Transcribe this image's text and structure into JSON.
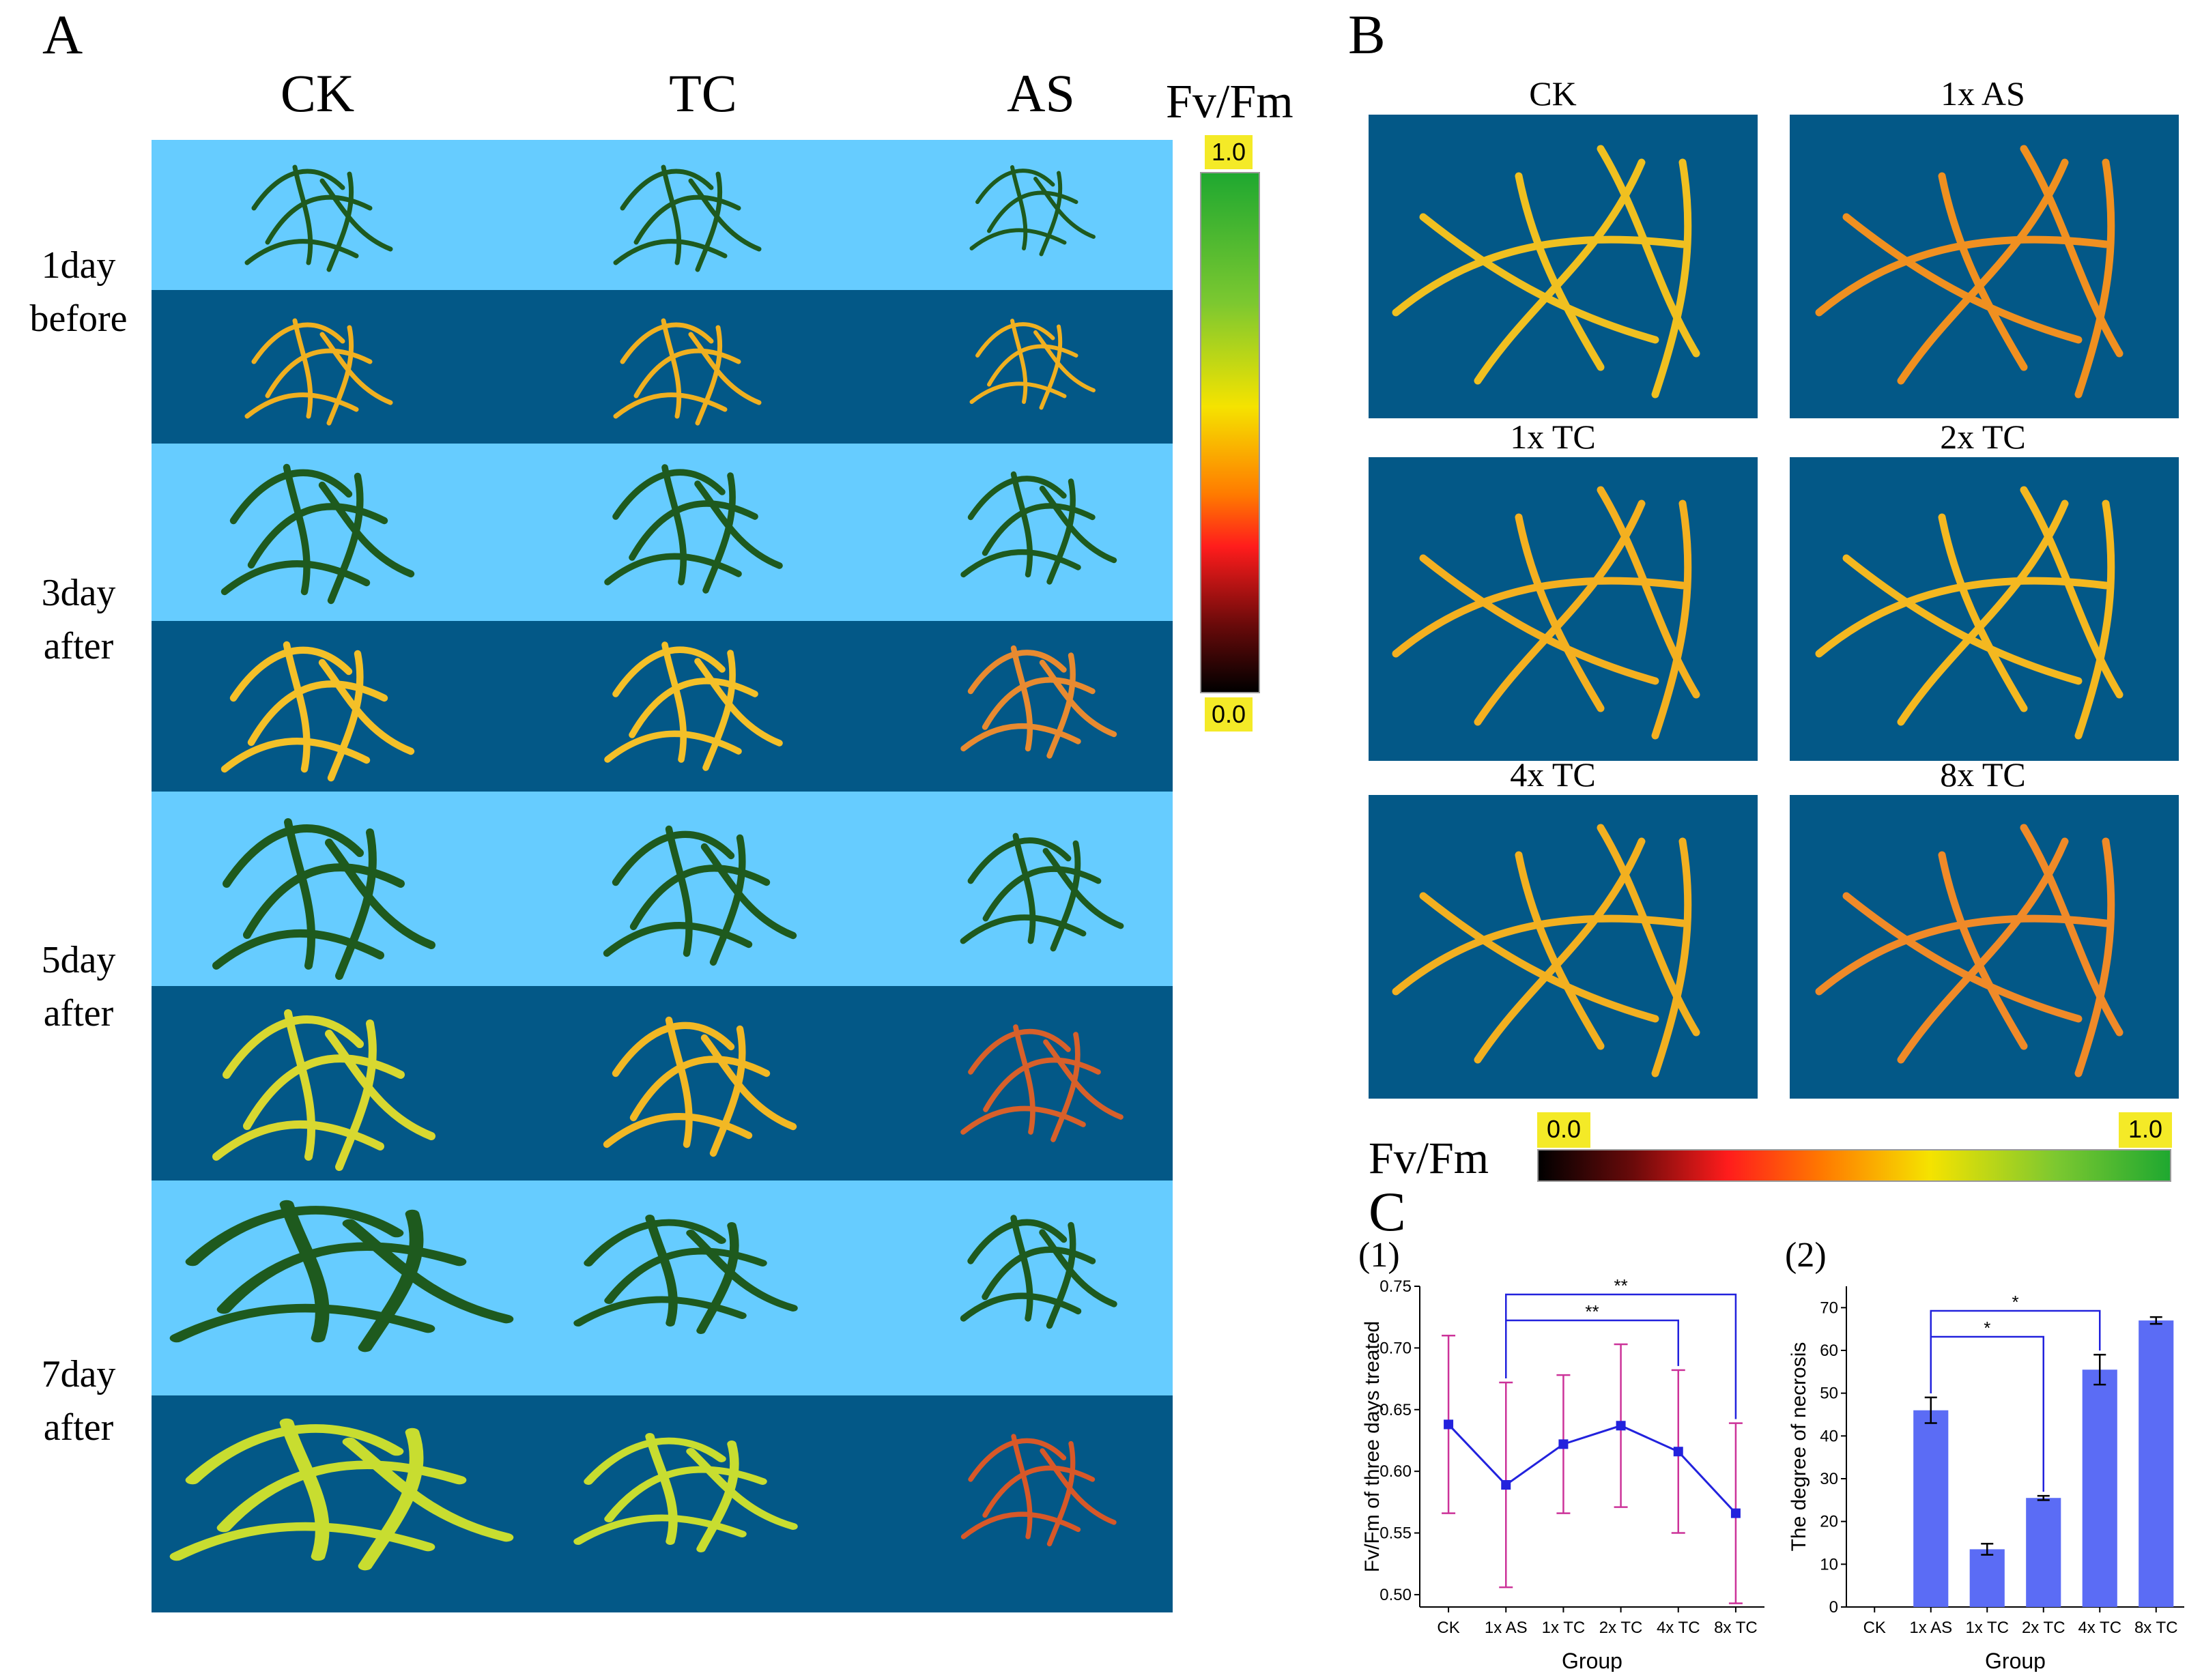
{
  "panel_a": {
    "letter": "A",
    "columns": [
      "CK",
      "TC",
      "AS"
    ],
    "rows": [
      {
        "line1": "1day",
        "line2": "before"
      },
      {
        "line1": "3day",
        "line2": "after"
      },
      {
        "line1": "5day",
        "line2": "after"
      },
      {
        "line1": "7day",
        "line2": "after"
      }
    ],
    "scale": {
      "title": "Fv/Fm",
      "max": "1.0",
      "min": "0.0"
    }
  },
  "panel_b": {
    "letter": "B",
    "thumbs": [
      "CK",
      "1x AS",
      "1x TC",
      "2x TC",
      "4x TC",
      "8x TC"
    ],
    "scale": {
      "title": "Fv/Fm",
      "min": "0.0",
      "max": "1.0"
    }
  },
  "panel_c": {
    "letter": "C",
    "sub1": "(1)",
    "sub2": "(2)"
  },
  "colors": {
    "light_band": "#66ccff",
    "dark_band": "#035887",
    "leaf_green": "#1e5a1e",
    "line_blue": "#2222dd",
    "error_magenta": "#cc3399",
    "bar_blue": "#5b6cf5"
  },
  "chart_data": [
    {
      "type": "line",
      "title": "(1)",
      "xlabel": "Group",
      "ylabel": "Fv/Fm of three days treated",
      "categories": [
        "CK",
        "1x AS",
        "1x TC",
        "2x TC",
        "4x TC",
        "8x TC"
      ],
      "series": [
        {
          "name": "Fv/Fm",
          "values": [
            0.638,
            0.589,
            0.622,
            0.637,
            0.616,
            0.566
          ]
        }
      ],
      "error": [
        0.072,
        0.083,
        0.056,
        0.066,
        0.066,
        0.073
      ],
      "ylim": [
        0.49,
        0.75
      ],
      "yticks": [
        "0.50",
        "0.55",
        "0.60",
        "0.65",
        "0.70",
        "0.75"
      ],
      "significance": [
        {
          "from": "1x AS",
          "to": "4x TC",
          "label": "**"
        },
        {
          "from": "1x AS",
          "to": "8x TC",
          "label": "**"
        }
      ]
    },
    {
      "type": "bar",
      "title": "(2)",
      "xlabel": "Group",
      "ylabel": "The degree of necrosis",
      "categories": [
        "CK",
        "1x  AS",
        "1x TC",
        "2x TC",
        "4x TC",
        "8x TC"
      ],
      "values": [
        0,
        46,
        13.5,
        25.5,
        55.5,
        67
      ],
      "error": [
        0,
        3,
        1.3,
        0.5,
        3.5,
        0.8
      ],
      "ylim": [
        0,
        75
      ],
      "yticks": [
        "0",
        "10",
        "20",
        "30",
        "40",
        "50",
        "60",
        "70"
      ],
      "significance": [
        {
          "from": "1x  AS",
          "to": "2x TC",
          "label": "*"
        },
        {
          "from": "1x  AS",
          "to": "4x TC",
          "label": "*"
        }
      ]
    }
  ]
}
